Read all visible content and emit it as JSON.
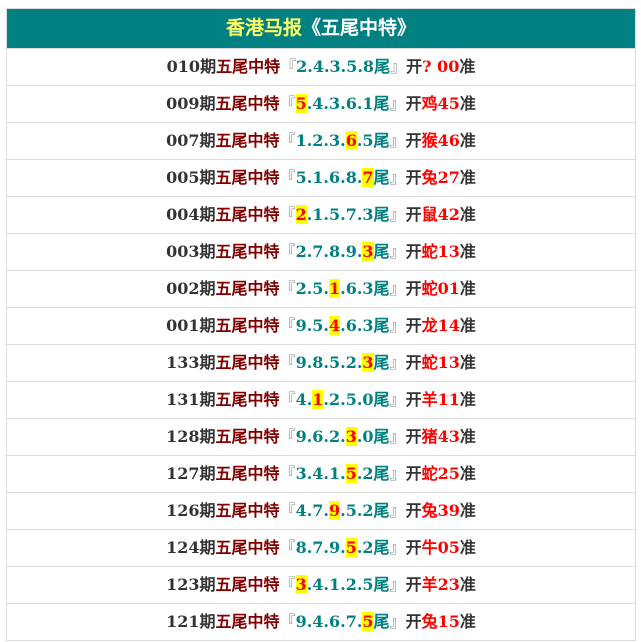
{
  "header": {
    "title_a": "香港马报",
    "title_b": "《五尾中特》"
  },
  "labels": {
    "period_suffix": "期",
    "type": "五尾中特",
    "open": "『",
    "close": "』",
    "tail": "尾",
    "kai": "开",
    "zhun": "准"
  },
  "colors": {
    "header_bg": "#008080",
    "title_yellow": "#ffff66",
    "highlight_bg": "#ffff00",
    "result": "#ff0000",
    "digits": "#008080"
  },
  "rows": [
    {
      "period": "010",
      "pre": "2.4.3.5.8",
      "hit": "",
      "post": "",
      "animal": "?",
      "num": " 00"
    },
    {
      "period": "009",
      "pre": "",
      "hit": "5",
      "post": ".4.3.6.1",
      "animal": "鸡",
      "num": "45"
    },
    {
      "period": "007",
      "pre": "1.2.3.",
      "hit": "6",
      "post": ".5",
      "animal": "猴",
      "num": "46"
    },
    {
      "period": "005",
      "pre": "5.1.6.8.",
      "hit": "7",
      "post": "",
      "animal": "兔",
      "num": "27"
    },
    {
      "period": "004",
      "pre": "",
      "hit": "2",
      "post": ".1.5.7.3",
      "animal": "鼠",
      "num": "42"
    },
    {
      "period": "003",
      "pre": "2.7.8.9.",
      "hit": "3",
      "post": "",
      "animal": "蛇",
      "num": "13"
    },
    {
      "period": "002",
      "pre": "2.5.",
      "hit": "1",
      "post": ".6.3",
      "animal": "蛇",
      "num": "01"
    },
    {
      "period": "001",
      "pre": "9.5.",
      "hit": "4",
      "post": ".6.3",
      "animal": "龙",
      "num": "14"
    },
    {
      "period": "133",
      "pre": "9.8.5.2.",
      "hit": "3",
      "post": "",
      "animal": "蛇",
      "num": "13"
    },
    {
      "period": "131",
      "pre": "4.",
      "hit": "1",
      "post": ".2.5.0",
      "animal": "羊",
      "num": "11"
    },
    {
      "period": "128",
      "pre": "9.6.2.",
      "hit": "3",
      "post": ".0",
      "animal": "猪",
      "num": "43"
    },
    {
      "period": "127",
      "pre": "3.4.1.",
      "hit": "5",
      "post": ".2",
      "animal": "蛇",
      "num": "25"
    },
    {
      "period": "126",
      "pre": "4.7.",
      "hit": "9",
      "post": ".5.2",
      "animal": "兔",
      "num": "39"
    },
    {
      "period": "124",
      "pre": "8.7.9.",
      "hit": "5",
      "post": ".2",
      "animal": "牛",
      "num": "05"
    },
    {
      "period": "123",
      "pre": "",
      "hit": "3",
      "post": ".4.1.2.5",
      "animal": "羊",
      "num": "23"
    },
    {
      "period": "121",
      "pre": "9.4.6.7.",
      "hit": "5",
      "post": "",
      "animal": "兔",
      "num": "15"
    }
  ]
}
